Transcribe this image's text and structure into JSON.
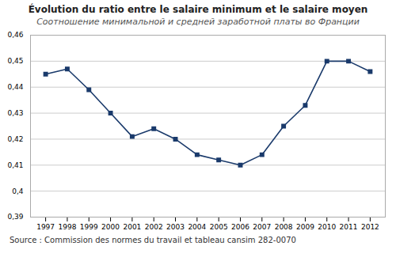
{
  "chart_data": {
    "type": "line",
    "title": "Évolution du ratio entre le salaire minimum et le salaire moyen",
    "subtitle": "Соотношение минимальной и средней заработной платы во Франции",
    "source": "Source : Commission des normes du travail et tableau cansim 282-0070",
    "x": [
      1997,
      1998,
      1999,
      2000,
      2001,
      2002,
      2003,
      2004,
      2005,
      2006,
      2007,
      2008,
      2009,
      2010,
      2011,
      2012
    ],
    "values": [
      0.445,
      0.447,
      0.439,
      0.43,
      0.421,
      0.424,
      0.42,
      0.414,
      0.412,
      0.41,
      0.414,
      0.425,
      0.433,
      0.45,
      0.45,
      0.446
    ],
    "color": "#1a3a6b",
    "marker": "square",
    "xlim": [
      1996.3,
      2012.7
    ],
    "xticks": [
      1997,
      1998,
      1999,
      2000,
      2001,
      2002,
      2003,
      2004,
      2005,
      2006,
      2007,
      2008,
      2009,
      2010,
      2011,
      2012
    ],
    "ylim": [
      0.39,
      0.46
    ],
    "yticks": [
      {
        "value": 0.39,
        "label": "0,39"
      },
      {
        "value": 0.4,
        "label": "0,4"
      },
      {
        "value": 0.41,
        "label": "0,41"
      },
      {
        "value": 0.42,
        "label": "0,42"
      },
      {
        "value": 0.43,
        "label": "0,43"
      },
      {
        "value": 0.44,
        "label": "0,44"
      },
      {
        "value": 0.45,
        "label": "0,45"
      },
      {
        "value": 0.46,
        "label": "0,46"
      }
    ],
    "grid": true
  }
}
